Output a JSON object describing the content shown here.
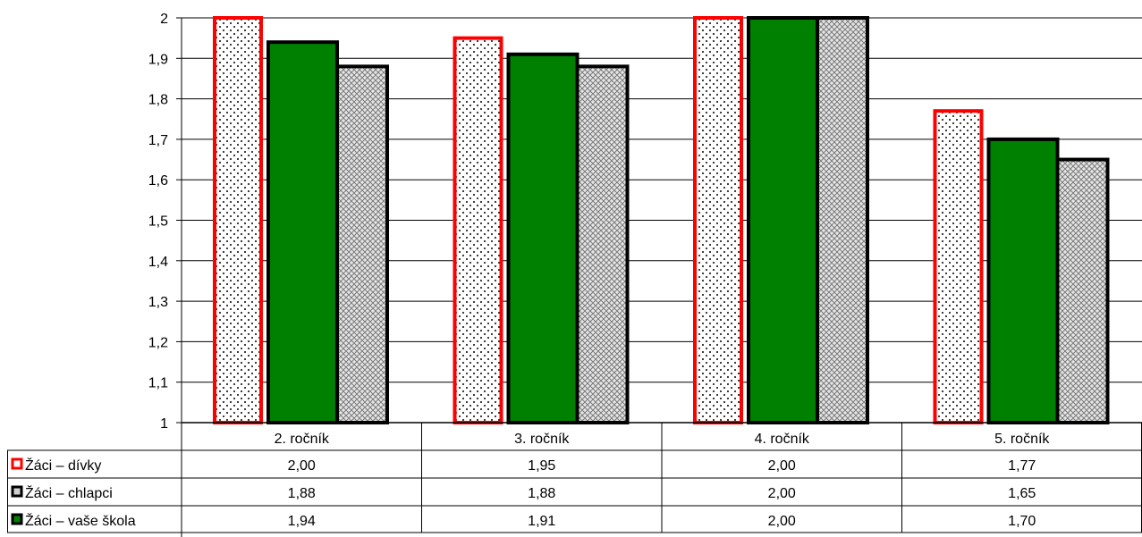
{
  "chart_data": {
    "type": "bar",
    "title": "",
    "xlabel": "",
    "ylabel": "",
    "ylim": [
      1,
      2
    ],
    "ytick_step": 0.1,
    "yticks": [
      "1",
      "1,1",
      "1,2",
      "1,3",
      "1,4",
      "1,5",
      "1,6",
      "1,7",
      "1,8",
      "1,9",
      "2"
    ],
    "grid": true,
    "legend": "data-table-left",
    "categories": [
      "2. ročník",
      "3. ročník",
      "4. ročník",
      "5. ročník"
    ],
    "series": [
      {
        "name": "Žáci – dívky",
        "values": [
          2.0,
          1.95,
          2.0,
          1.77
        ],
        "labels": [
          "2,00",
          "1,95",
          "2,00",
          "1,77"
        ],
        "fill": "dotted-white",
        "stroke": "#ff0000"
      },
      {
        "name": "Žáci – vaše škola",
        "values": [
          1.94,
          1.91,
          2.0,
          1.7
        ],
        "labels": [
          "1,94",
          "1,91",
          "2,00",
          "1,70"
        ],
        "fill": "#008000",
        "stroke": "#000000"
      },
      {
        "name": "Žáci – chlapci",
        "values": [
          1.88,
          1.88,
          2.0,
          1.65
        ],
        "labels": [
          "1,88",
          "1,88",
          "2,00",
          "1,65"
        ],
        "fill": "crosshatch-gray",
        "stroke": "#000000"
      }
    ],
    "table_row_order": [
      "Žáci – dívky",
      "Žáci – chlapci",
      "Žáci – vaše škola"
    ]
  }
}
